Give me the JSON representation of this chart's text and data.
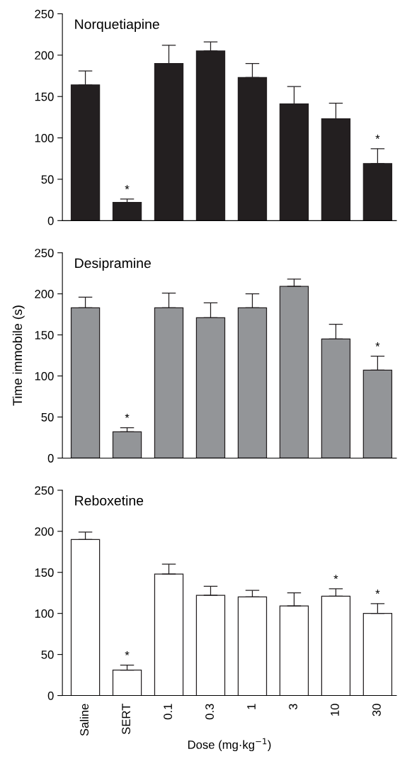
{
  "chart_data": [
    {
      "type": "bar",
      "title": "Norquetiapine",
      "categories": [
        "Saline",
        "SERT",
        "0.1",
        "0.3",
        "1",
        "3",
        "10",
        "30"
      ],
      "color": "#231f20",
      "values": [
        164,
        22,
        190,
        205,
        173,
        141,
        123,
        69
      ],
      "errors": [
        [
          164,
          181
        ],
        [
          22,
          26
        ],
        [
          190,
          212
        ],
        [
          205,
          216
        ],
        [
          173,
          190
        ],
        [
          141,
          162
        ],
        [
          123,
          142
        ],
        [
          69,
          87
        ]
      ],
      "ylim": [
        0,
        250
      ],
      "yticks": [
        0,
        50,
        100,
        150,
        200,
        250
      ],
      "tick_labels": "y",
      "annotations": [
        {
          "text": "*",
          "x": "SERT",
          "y": 22
        },
        {
          "text": "*",
          "x": "30",
          "y": 69
        }
      ]
    },
    {
      "type": "bar",
      "title": "Desipramine",
      "ylabel": "Time immobile (s)",
      "categories": [
        "Saline",
        "SERT",
        "0.1",
        "0.3",
        "1",
        "3",
        "10",
        "30"
      ],
      "color": "#939598",
      "values": [
        183,
        32,
        183,
        171,
        183,
        209,
        145,
        107
      ],
      "errors": [
        [
          183,
          196
        ],
        [
          32,
          37
        ],
        [
          183,
          201
        ],
        [
          171,
          189
        ],
        [
          183,
          200
        ],
        [
          209,
          218
        ],
        [
          145,
          163
        ],
        [
          107,
          124
        ]
      ],
      "ylim": [
        0,
        250
      ],
      "yticks": [
        0,
        50,
        100,
        150,
        200,
        250
      ],
      "tick_labels": "y",
      "annotations": [
        {
          "text": "*",
          "x": "SERT",
          "y": 32
        },
        {
          "text": "*",
          "x": "30",
          "y": 107
        }
      ]
    },
    {
      "type": "bar",
      "title": "Reboxetine",
      "xlabel": "Dose (mg·kg$^{−1}$)",
      "categories": [
        "Saline",
        "SERT",
        "0.1",
        "0.3",
        "1",
        "3",
        "10",
        "30"
      ],
      "color": "#ffffff",
      "values": [
        190,
        31,
        148,
        122,
        120,
        109,
        121,
        100
      ],
      "errors": [
        [
          190,
          199
        ],
        [
          31,
          37
        ],
        [
          148,
          160
        ],
        [
          122,
          133
        ],
        [
          120,
          128
        ],
        [
          109,
          125
        ],
        [
          121,
          130
        ],
        [
          100,
          112
        ]
      ],
      "ylim": [
        0,
        250
      ],
      "yticks": [
        0,
        50,
        100,
        150,
        200,
        250
      ],
      "annotations": [
        {
          "text": "*",
          "x": "SERT",
          "y": 31
        },
        {
          "text": "*",
          "x": "10",
          "y": 121
        },
        {
          "text": "*",
          "x": "30",
          "y": 100
        }
      ]
    }
  ]
}
